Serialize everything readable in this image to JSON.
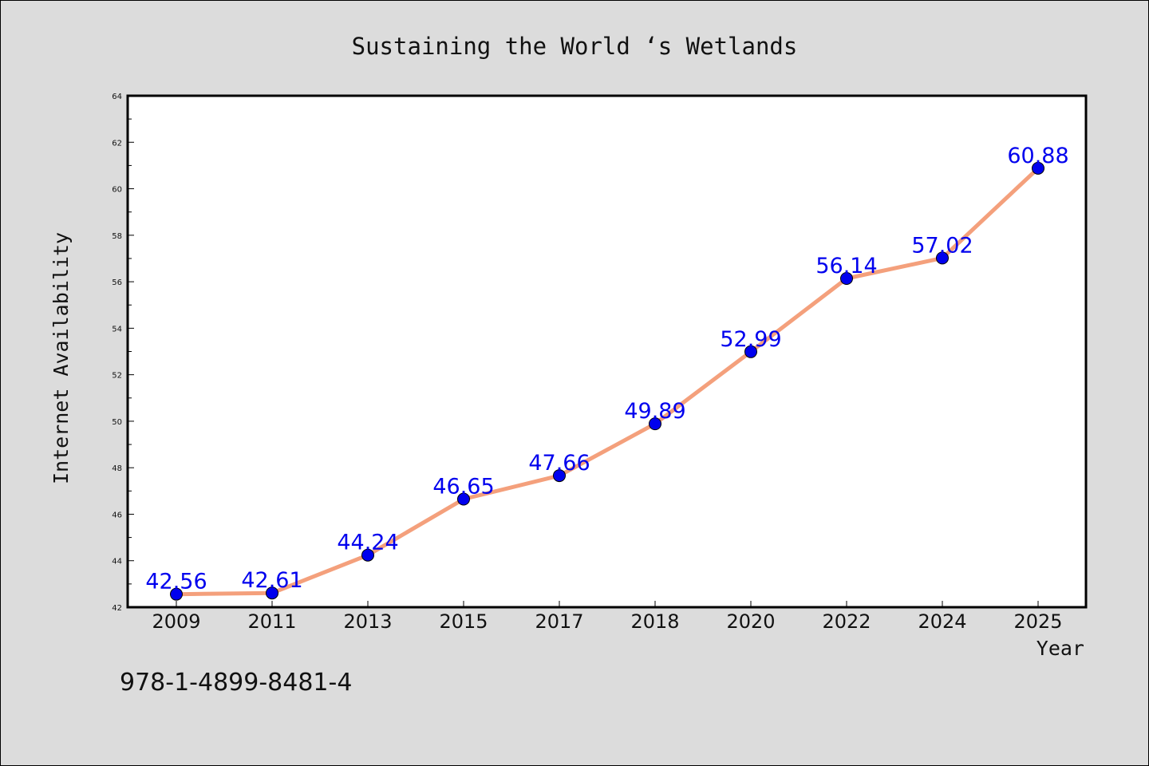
{
  "chart_data": {
    "type": "line",
    "title": "Sustaining the World ‘s Wetlands",
    "xlabel": "Year",
    "ylabel": "Internet Availability",
    "categories": [
      "2009",
      "2011",
      "2013",
      "2015",
      "2017",
      "2018",
      "2020",
      "2022",
      "2024",
      "2025"
    ],
    "series": [
      {
        "values": [
          42.56,
          42.61,
          44.24,
          46.65,
          47.66,
          49.89,
          52.99,
          56.14,
          57.02,
          60.88
        ],
        "data_labels": [
          "42.56",
          "42.61",
          "44.24",
          "46.65",
          "47.66",
          "49.89",
          "52.99",
          "56.14",
          "57.02",
          "60.88"
        ]
      }
    ],
    "ylim": [
      42,
      64
    ],
    "yticks": [
      "42",
      "44",
      "46",
      "48",
      "50",
      "52",
      "54",
      "56",
      "58",
      "60",
      "62",
      "64"
    ],
    "grid": false,
    "line_color": "#f4a07c",
    "marker_color": "#0000ee",
    "label_color": "#0000ee"
  },
  "footnote": "978-1-4899-8481-4"
}
